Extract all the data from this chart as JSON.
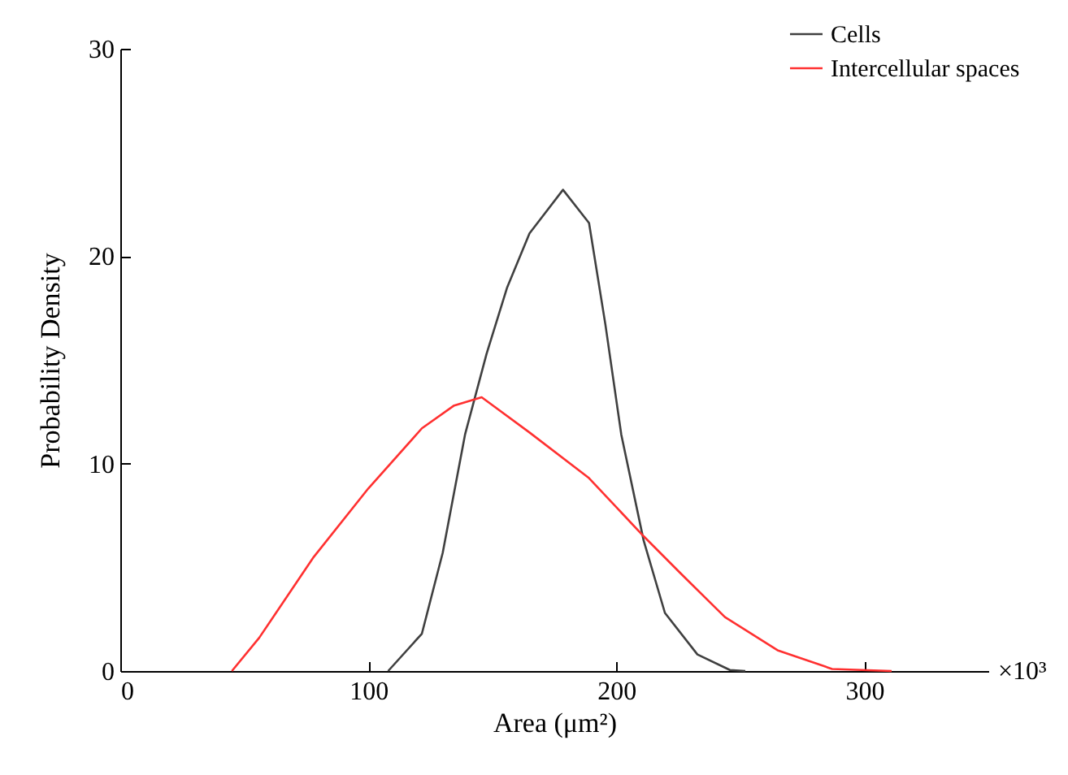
{
  "chart_data": {
    "type": "line",
    "xlabel": "Area (μm²)",
    "ylabel": "Probability Density",
    "xlim": [
      0,
      350
    ],
    "xticks": [
      0,
      100,
      200,
      300
    ],
    "ylim": [
      0,
      30
    ],
    "yticks": [
      0,
      10,
      20,
      30
    ],
    "grid": false,
    "legend": "top right",
    "marker": "none",
    "line_style": "solid",
    "annotations": [
      "×10³"
    ],
    "series": [
      {
        "name": "Cells",
        "color": "#404040",
        "x": [
          108,
          121.6,
          130,
          139,
          147.7,
          156,
          165,
          178.5,
          189,
          195.6,
          202,
          211,
          219.6,
          232.7,
          245.8,
          252
        ],
        "values": [
          0,
          1.8,
          5.7,
          11.4,
          15.3,
          18.5,
          21.1,
          23.2,
          21.6,
          16.7,
          11.4,
          6.3,
          2.8,
          0.8,
          0.05,
          0
        ]
      },
      {
        "name": "Intercellular spaces",
        "color": "#ff3030",
        "x": [
          45,
          56,
          78,
          100,
          121.6,
          134.6,
          145.7,
          165,
          189,
          211,
          226,
          243.8,
          265,
          287,
          311
        ],
        "values": [
          0,
          1.6,
          5.5,
          8.8,
          11.7,
          12.8,
          13.2,
          11.5,
          9.3,
          6.5,
          4.7,
          2.6,
          1.0,
          0.1,
          0
        ]
      }
    ]
  }
}
